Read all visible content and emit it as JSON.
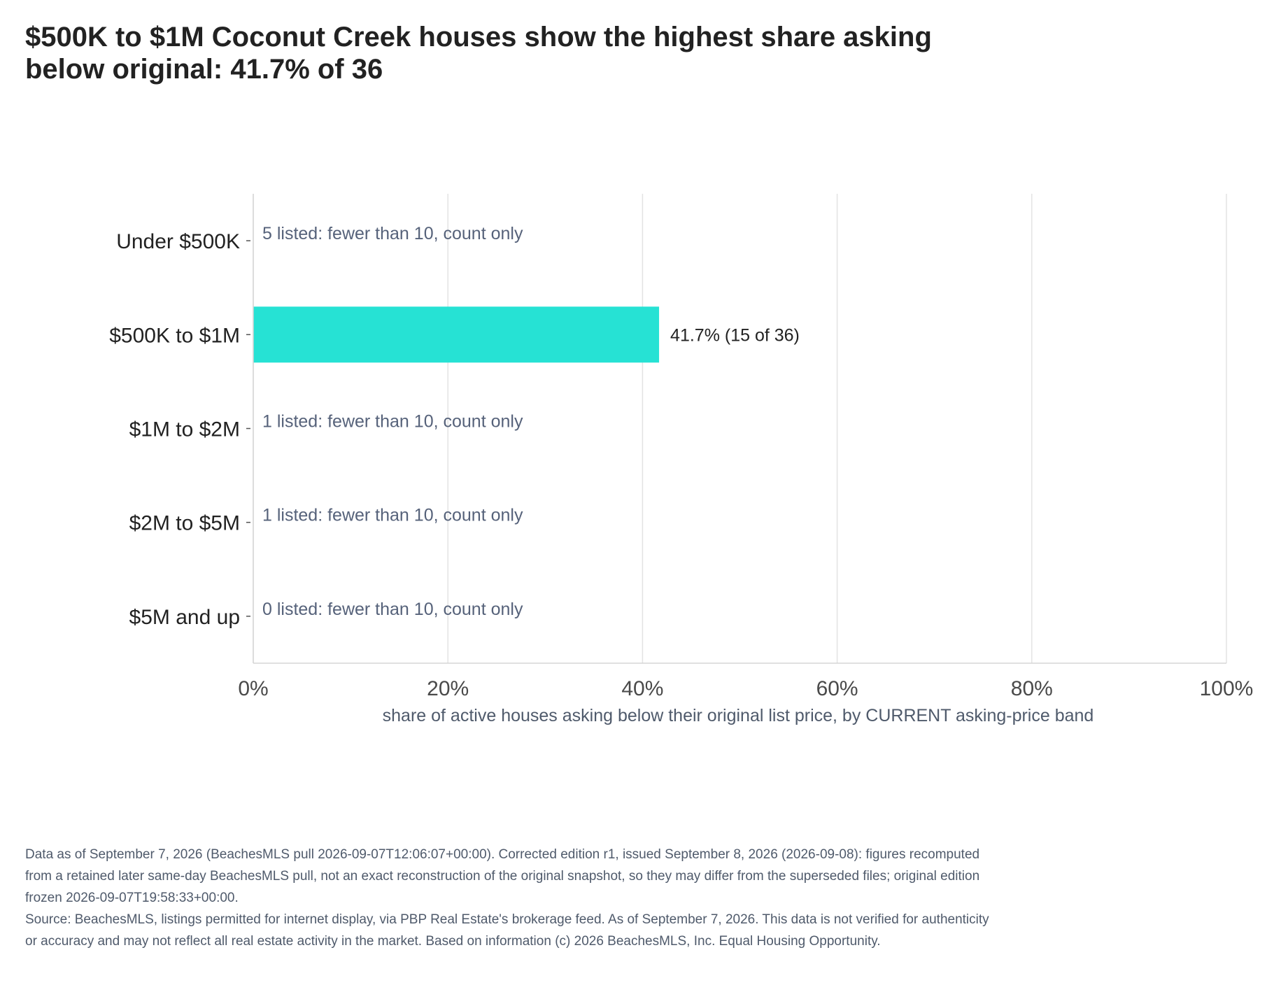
{
  "title": "$500K to $1M Coconut Creek houses show the highest share asking below original: 41.7% of 36",
  "chart_data": {
    "type": "bar",
    "orientation": "horizontal",
    "categories": [
      "Under $500K",
      "$500K to $1M",
      "$1M to $2M",
      "$2M to $5M",
      "$5M and up"
    ],
    "values": [
      null,
      41.7,
      null,
      null,
      null
    ],
    "bar_labels": [
      "",
      "41.7%  (15 of 36)",
      "",
      "",
      ""
    ],
    "count_notes": [
      "5 listed: fewer than 10, count only",
      "",
      "1 listed: fewer than 10, count only",
      "1 listed: fewer than 10, count only",
      "0 listed: fewer than 10, count only"
    ],
    "xlabel": "share of active houses asking below their original list price, by CURRENT asking-price band",
    "ylabel": "",
    "xlim": [
      0,
      100
    ],
    "xticks": [
      0,
      20,
      40,
      60,
      80,
      100
    ],
    "xtick_labels": [
      "0%",
      "20%",
      "40%",
      "60%",
      "80%",
      "100%"
    ],
    "grid": true,
    "bar_color": "#26e2d4"
  },
  "footer": {
    "data_note": "Data as of September 7, 2026 (BeachesMLS pull 2026-09-07T12:06:07+00:00). Corrected edition r1, issued September 8, 2026 (2026-09-08): figures recomputed from a retained later same-day BeachesMLS pull, not an exact reconstruction of the original snapshot, so they may differ from the superseded files; original edition frozen 2026-09-07T19:58:33+00:00.",
    "source": "Source: BeachesMLS, listings permitted for internet display, via PBP Real Estate's brokerage feed. As of September 7, 2026. This data is not verified for authenticity or accuracy and may not reflect all real estate activity in the market. Based on information (c) 2026 BeachesMLS, Inc. Equal Housing Opportunity."
  }
}
